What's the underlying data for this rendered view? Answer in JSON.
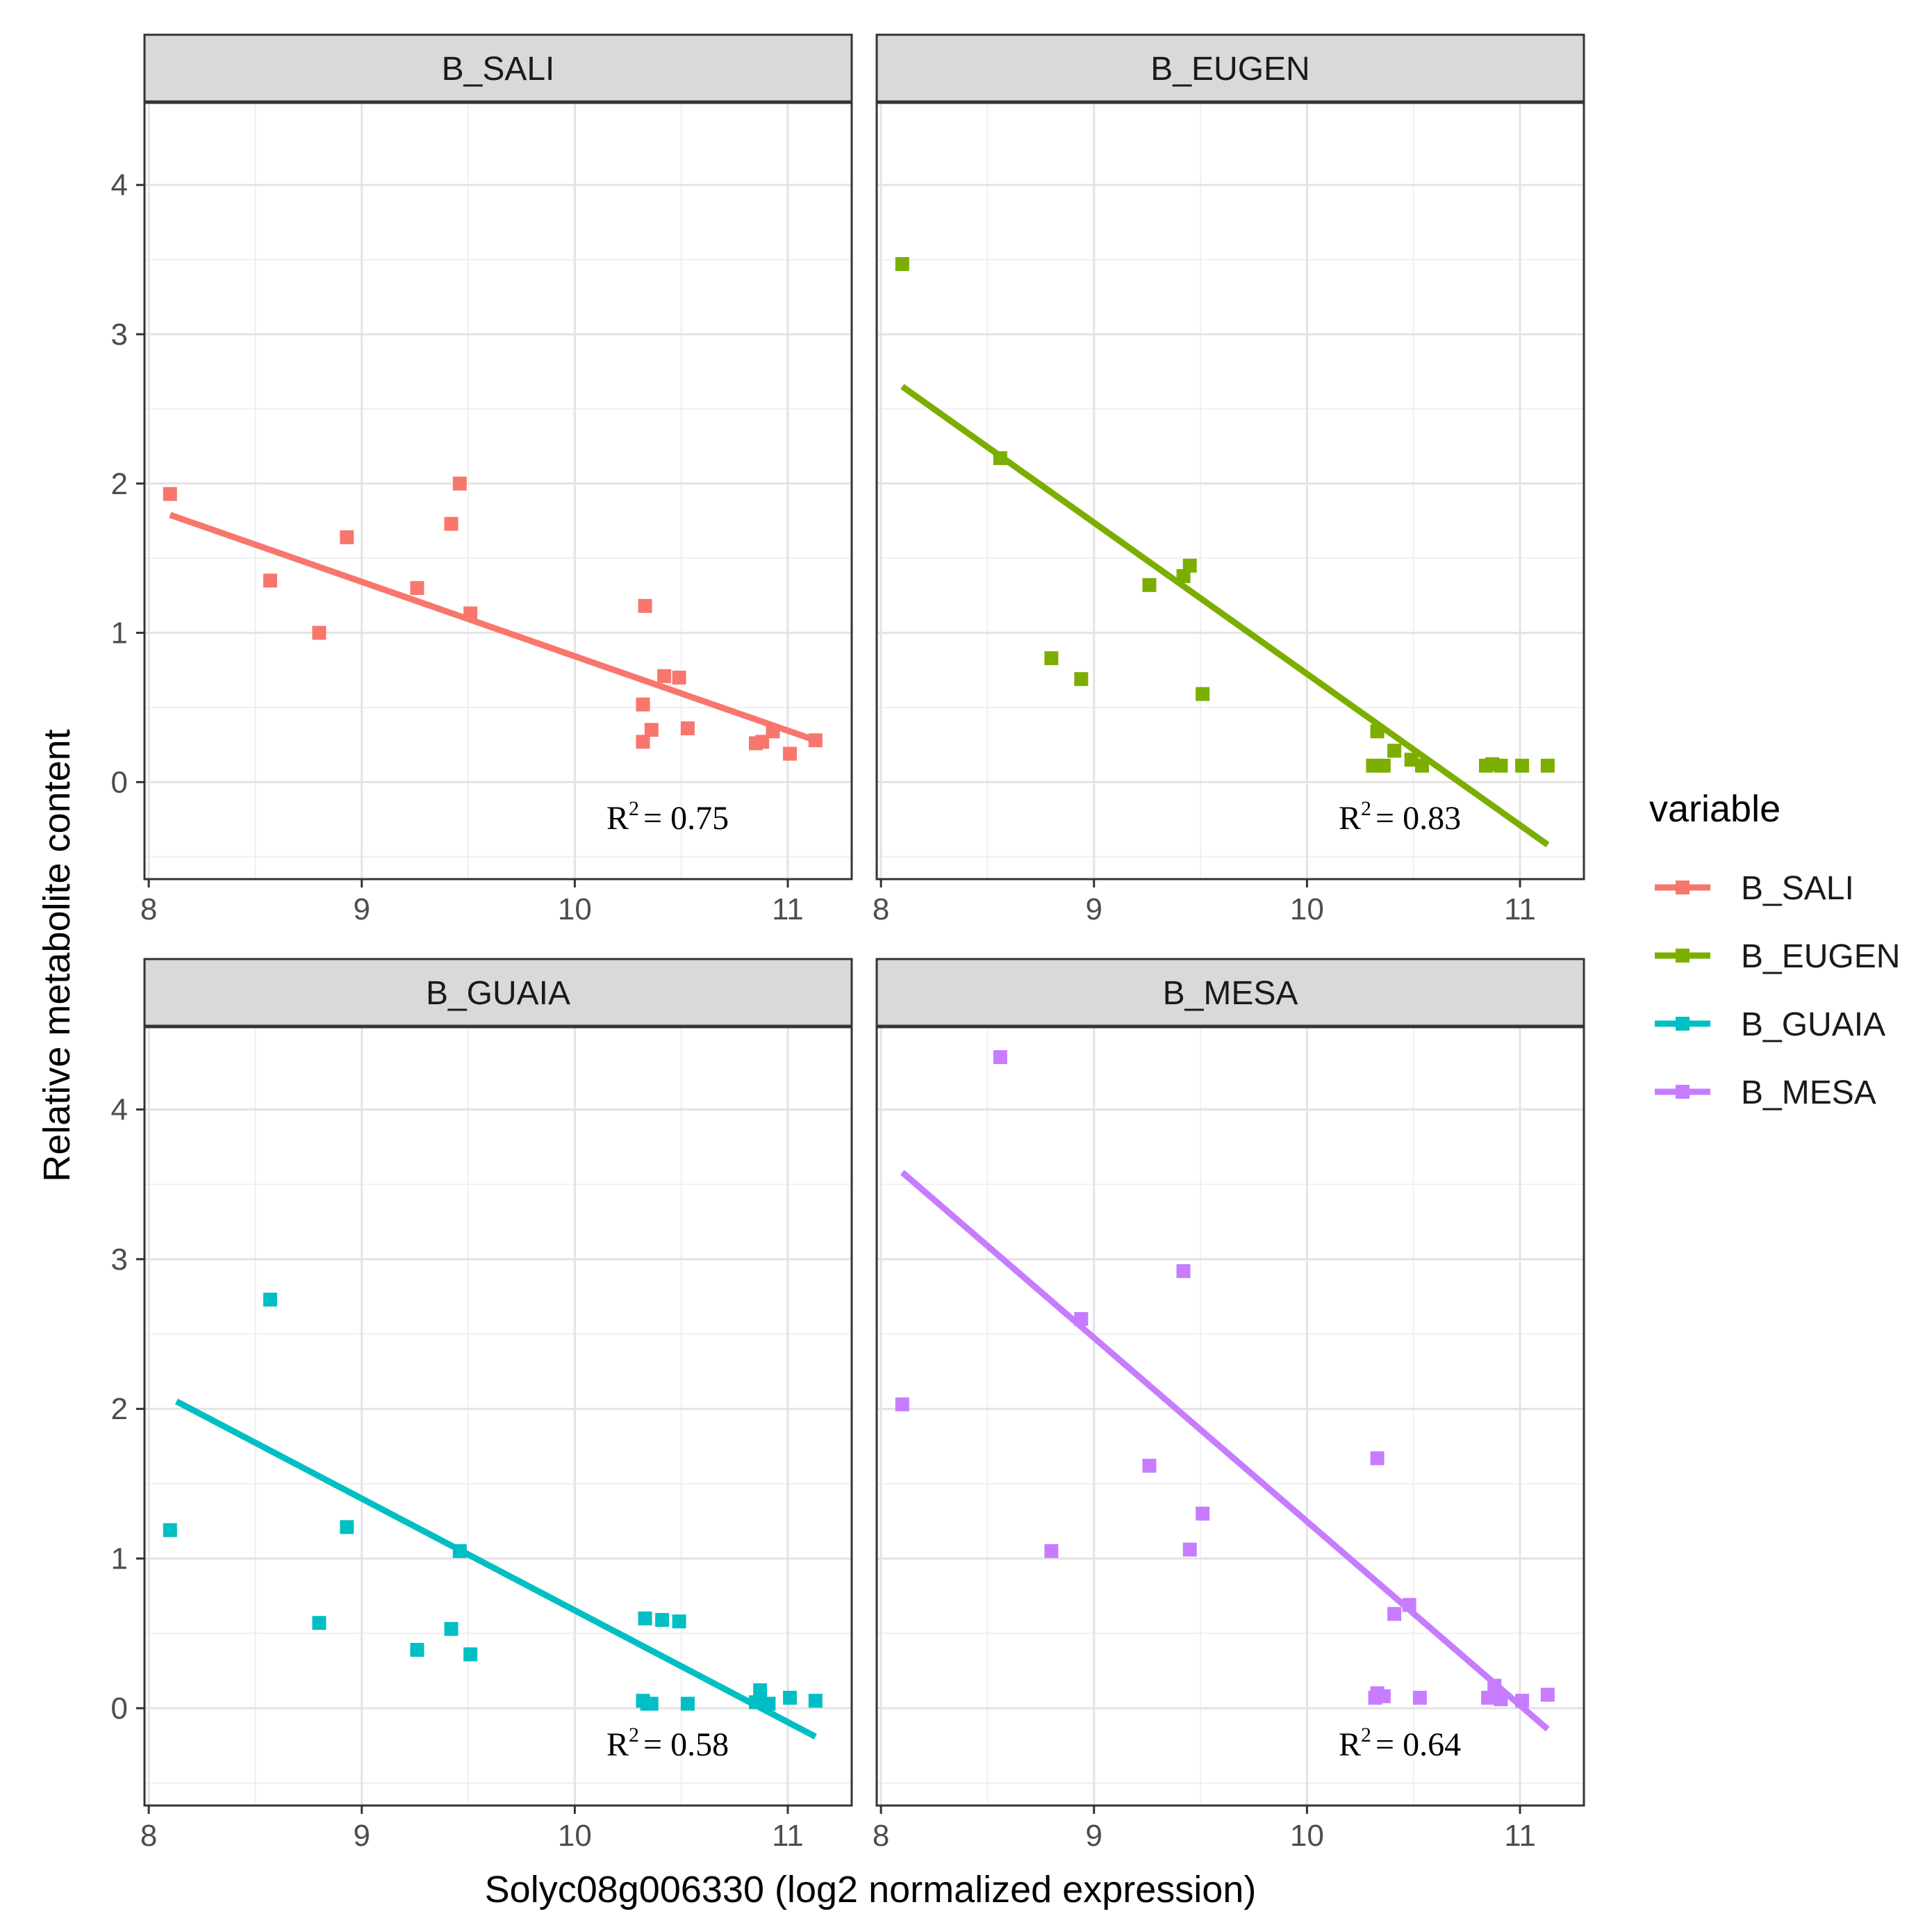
{
  "chart_data": {
    "type": "scatter",
    "x_title": "Solyc08g006330 (log2 normalized expression)",
    "y_title": "Relative metabolite content",
    "xlim": [
      7.98,
      11.3
    ],
    "ylim": [
      -0.65,
      4.55
    ],
    "x_ticks": [
      8,
      9,
      10,
      11
    ],
    "y_ticks": [
      0,
      1,
      2,
      3,
      4
    ],
    "legend_title": "variable",
    "legend_position": "right",
    "grid": true,
    "panels": [
      {
        "name": "B_SALI",
        "color": "#F8766D",
        "r2_label": "R",
        "r2_sup": "2",
        "r2_value": "= 0.75",
        "fit": {
          "x": [
            8.1,
            11.13
          ],
          "y": [
            1.79,
            0.28
          ]
        },
        "points": [
          {
            "x": 8.1,
            "y": 1.93
          },
          {
            "x": 8.57,
            "y": 1.35
          },
          {
            "x": 8.8,
            "y": 1.0
          },
          {
            "x": 8.93,
            "y": 1.64
          },
          {
            "x": 9.26,
            "y": 1.3
          },
          {
            "x": 9.42,
            "y": 1.73
          },
          {
            "x": 9.46,
            "y": 2.0
          },
          {
            "x": 9.51,
            "y": 1.13
          },
          {
            "x": 10.32,
            "y": 0.52
          },
          {
            "x": 10.33,
            "y": 1.18
          },
          {
            "x": 10.32,
            "y": 0.27
          },
          {
            "x": 10.36,
            "y": 0.35
          },
          {
            "x": 10.42,
            "y": 0.71
          },
          {
            "x": 10.49,
            "y": 0.7
          },
          {
            "x": 10.53,
            "y": 0.36
          },
          {
            "x": 10.85,
            "y": 0.26
          },
          {
            "x": 10.88,
            "y": 0.27
          },
          {
            "x": 10.93,
            "y": 0.34
          },
          {
            "x": 11.01,
            "y": 0.19
          },
          {
            "x": 11.13,
            "y": 0.28
          }
        ]
      },
      {
        "name": "B_EUGEN",
        "color": "#7CAE00",
        "r2_label": "R",
        "r2_sup": "2",
        "r2_value": "= 0.83",
        "fit": {
          "x": [
            8.1,
            11.13
          ],
          "y": [
            2.65,
            -0.42
          ]
        },
        "points": [
          {
            "x": 8.1,
            "y": 3.47
          },
          {
            "x": 8.56,
            "y": 2.17
          },
          {
            "x": 8.8,
            "y": 0.83
          },
          {
            "x": 8.94,
            "y": 0.69
          },
          {
            "x": 9.26,
            "y": 1.32
          },
          {
            "x": 9.42,
            "y": 1.38
          },
          {
            "x": 9.45,
            "y": 1.45
          },
          {
            "x": 9.51,
            "y": 0.59
          },
          {
            "x": 10.31,
            "y": 0.11
          },
          {
            "x": 10.33,
            "y": 0.34
          },
          {
            "x": 10.36,
            "y": 0.11
          },
          {
            "x": 10.41,
            "y": 0.21
          },
          {
            "x": 10.49,
            "y": 0.15
          },
          {
            "x": 10.54,
            "y": 0.11
          },
          {
            "x": 10.84,
            "y": 0.11
          },
          {
            "x": 10.87,
            "y": 0.12
          },
          {
            "x": 10.91,
            "y": 0.11
          },
          {
            "x": 11.01,
            "y": 0.11
          },
          {
            "x": 11.13,
            "y": 0.11
          }
        ]
      },
      {
        "name": "B_GUAIA",
        "color": "#00BFC4",
        "r2_label": "R",
        "r2_sup": "2",
        "r2_value": "= 0.58",
        "fit": {
          "x": [
            8.13,
            11.13
          ],
          "y": [
            2.05,
            -0.19
          ]
        },
        "points": [
          {
            "x": 8.1,
            "y": 1.19
          },
          {
            "x": 8.57,
            "y": 2.73
          },
          {
            "x": 8.8,
            "y": 0.57
          },
          {
            "x": 8.93,
            "y": 1.21
          },
          {
            "x": 9.26,
            "y": 0.39
          },
          {
            "x": 9.42,
            "y": 0.53
          },
          {
            "x": 9.46,
            "y": 1.05
          },
          {
            "x": 9.51,
            "y": 0.36
          },
          {
            "x": 10.32,
            "y": 0.05
          },
          {
            "x": 10.33,
            "y": 0.6
          },
          {
            "x": 10.34,
            "y": 0.03
          },
          {
            "x": 10.36,
            "y": 0.03
          },
          {
            "x": 10.41,
            "y": 0.59
          },
          {
            "x": 10.49,
            "y": 0.58
          },
          {
            "x": 10.53,
            "y": 0.03
          },
          {
            "x": 10.85,
            "y": 0.04
          },
          {
            "x": 10.87,
            "y": 0.12
          },
          {
            "x": 10.91,
            "y": 0.03
          },
          {
            "x": 11.01,
            "y": 0.07
          },
          {
            "x": 11.13,
            "y": 0.05
          }
        ]
      },
      {
        "name": "B_MESA",
        "color": "#C77CFF",
        "r2_label": "R",
        "r2_sup": "2",
        "r2_value": "= 0.64",
        "fit": {
          "x": [
            8.1,
            11.13
          ],
          "y": [
            3.58,
            -0.14
          ]
        },
        "points": [
          {
            "x": 8.1,
            "y": 2.03
          },
          {
            "x": 8.56,
            "y": 4.35
          },
          {
            "x": 8.8,
            "y": 1.05
          },
          {
            "x": 8.94,
            "y": 2.6
          },
          {
            "x": 9.26,
            "y": 1.62
          },
          {
            "x": 9.42,
            "y": 2.92
          },
          {
            "x": 9.45,
            "y": 1.06
          },
          {
            "x": 9.51,
            "y": 1.3
          },
          {
            "x": 10.32,
            "y": 0.07
          },
          {
            "x": 10.33,
            "y": 1.67
          },
          {
            "x": 10.33,
            "y": 0.1
          },
          {
            "x": 10.36,
            "y": 0.08
          },
          {
            "x": 10.41,
            "y": 0.63
          },
          {
            "x": 10.48,
            "y": 0.69
          },
          {
            "x": 10.53,
            "y": 0.07
          },
          {
            "x": 10.85,
            "y": 0.07
          },
          {
            "x": 10.88,
            "y": 0.15
          },
          {
            "x": 10.91,
            "y": 0.06
          },
          {
            "x": 11.01,
            "y": 0.05
          },
          {
            "x": 11.13,
            "y": 0.09
          }
        ]
      }
    ]
  }
}
